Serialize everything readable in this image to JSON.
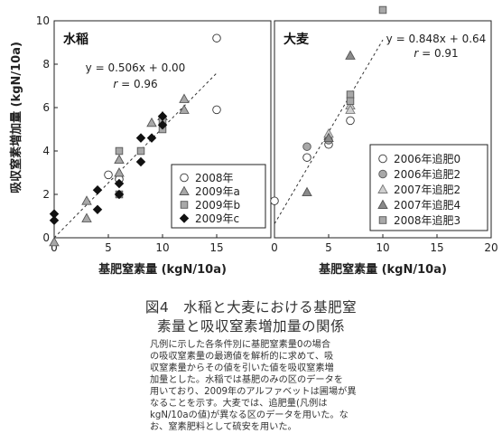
{
  "chart_data": [
    {
      "type": "scatter",
      "panel_label": "水稲",
      "xlabel": "基肥窒素量 (kgN/10a)",
      "ylabel": "吸収窒素増加量 (kgN/10a)",
      "xlim": [
        0,
        20
      ],
      "ylim": [
        0,
        10
      ],
      "xticks": [
        "0",
        "5",
        "10",
        "15"
      ],
      "yticks": [
        "0",
        "2",
        "4",
        "6",
        "8",
        "10"
      ],
      "legend_position": "bottom-right",
      "equation": "y = 0.506x + 0.00",
      "r_label": "r",
      "r_value": " = 0.96",
      "fit": {
        "slope": 0.506,
        "intercept": 0.0,
        "x_range": [
          0,
          15
        ]
      },
      "series": [
        {
          "name": "2008年",
          "marker": "circle-open",
          "x": [
            5,
            6,
            15,
            15
          ],
          "y": [
            2.9,
            2.7,
            9.2,
            5.9
          ]
        },
        {
          "name": "2009年a",
          "marker": "triangle-gray",
          "x": [
            3,
            3,
            6,
            6,
            9,
            10,
            12,
            12,
            0
          ],
          "y": [
            1.7,
            0.9,
            3.0,
            3.6,
            5.3,
            5.6,
            6.4,
            5.9,
            -0.2
          ]
        },
        {
          "name": "2009年b",
          "marker": "square-gray",
          "x": [
            6,
            6,
            8,
            10,
            10
          ],
          "y": [
            4.0,
            2.0,
            4.0,
            5.4,
            5.0
          ]
        },
        {
          "name": "2009年c",
          "marker": "diamond-black",
          "x": [
            0,
            0,
            4,
            4,
            6,
            6,
            8,
            8,
            9,
            10,
            10
          ],
          "y": [
            1.1,
            0.8,
            2.2,
            1.3,
            2.5,
            2.0,
            4.6,
            3.5,
            4.6,
            5.6,
            5.2
          ]
        }
      ]
    },
    {
      "type": "scatter",
      "panel_label": "大麦",
      "xlabel": "基肥窒素量 (kgN/10a)",
      "xlim": [
        0,
        20
      ],
      "ylim": [
        0,
        10
      ],
      "xticks": [
        "0",
        "5",
        "10",
        "15",
        "20"
      ],
      "legend_position": "bottom-right",
      "equation": "y = 0.848x + 0.64",
      "r_label": "r",
      "r_value": " = 0.91",
      "fit": {
        "slope": 0.848,
        "intercept": 0.64,
        "x_range": [
          0,
          10
        ]
      },
      "series": [
        {
          "name": "2006年追肥0",
          "marker": "circle-open",
          "x": [
            0,
            3,
            5,
            7
          ],
          "y": [
            1.7,
            3.7,
            4.3,
            5.4
          ]
        },
        {
          "name": "2006年追肥2",
          "marker": "circle-gray",
          "x": [
            3,
            5
          ],
          "y": [
            4.2,
            4.5
          ]
        },
        {
          "name": "2007年追肥2",
          "marker": "triangle-lightgray",
          "x": [
            5,
            7,
            7
          ],
          "y": [
            4.8,
            6.1,
            5.9
          ]
        },
        {
          "name": "2007年追肥4",
          "marker": "triangle-darkgray",
          "x": [
            3,
            5,
            7
          ],
          "y": [
            2.1,
            4.6,
            8.4
          ]
        },
        {
          "name": "2008年追肥3",
          "marker": "square-gray",
          "x": [
            7,
            7,
            10
          ],
          "y": [
            6.6,
            6.3,
            10.5
          ]
        }
      ]
    }
  ],
  "caption": {
    "title_line1": "図4　水稲と大麦における基肥窒",
    "title_line2": "素量と吸収窒素増加量の関係",
    "body": "凡例に示した各条件別に基肥窒素量0の場合\nの吸収窒素量の最適値を解析的に求めて、吸\n収窒素量からその値を引いた値を吸収窒素増\n加量とした。水稲では基肥のみの区のデータを\n用いており、2009年のアルファベットは圃場が異\nなることを示す。大麦では、追肥量(凡例は\nkgN/10aの値)が異なる区のデータを用いた。な\nお、窒素肥料として硫安を用いた。"
  }
}
